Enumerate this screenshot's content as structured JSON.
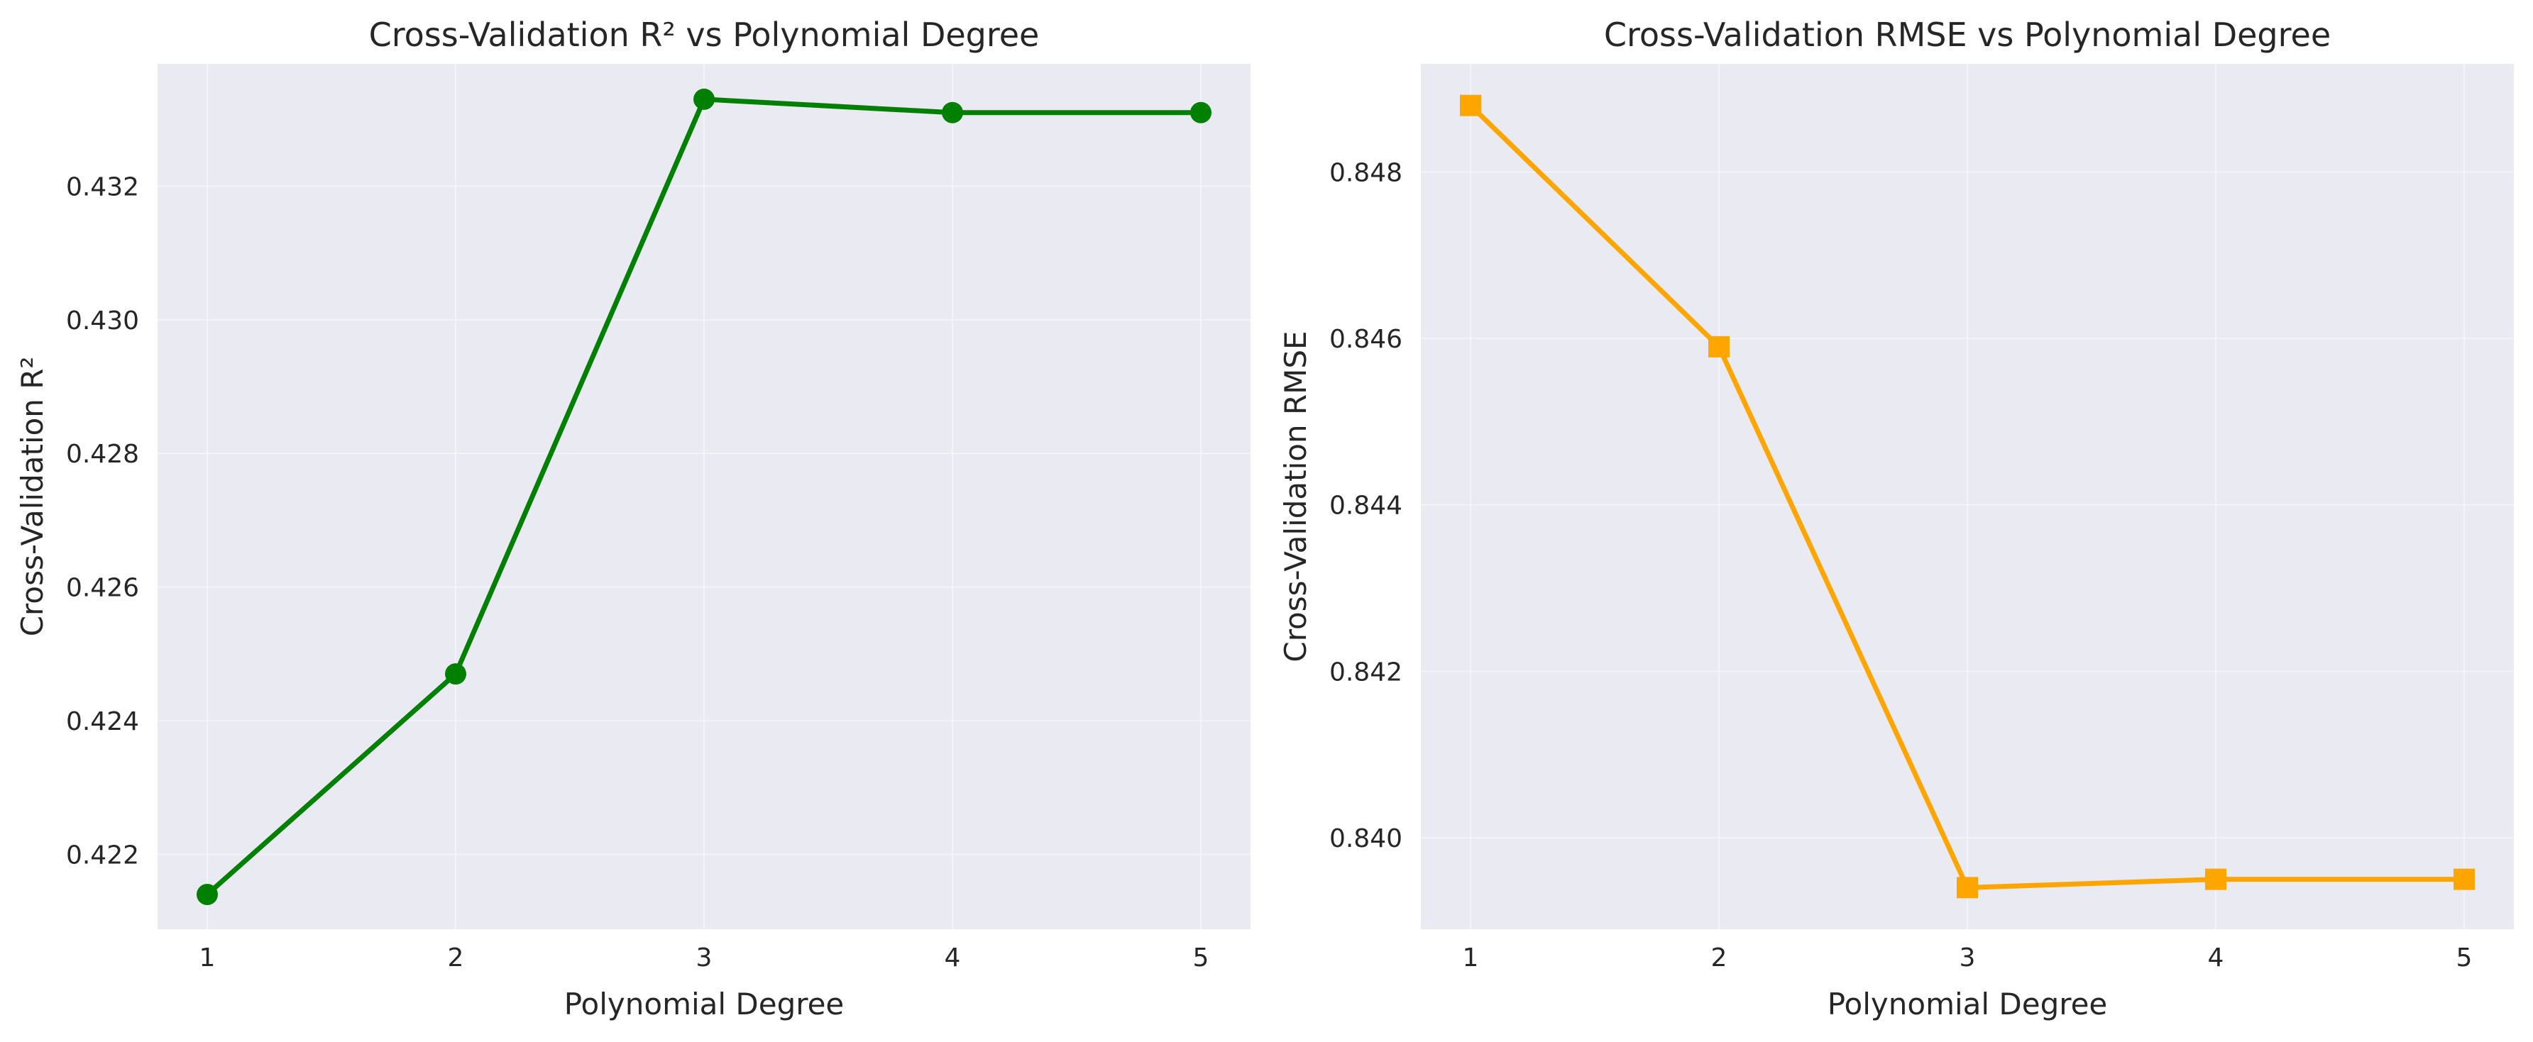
{
  "chart_data": [
    {
      "type": "line",
      "title": "Cross-Validation R² vs Polynomial Degree",
      "xlabel": "Polynomial Degree",
      "ylabel": "Cross-Validation R²",
      "x": [
        1,
        2,
        3,
        4,
        5
      ],
      "xticks": [
        "1",
        "2",
        "3",
        "4",
        "5"
      ],
      "xlim": [
        0.8,
        5.2
      ],
      "ylim": [
        0.42088,
        0.43383
      ],
      "yticks": [
        0.422,
        0.424,
        0.426,
        0.428,
        0.43,
        0.432
      ],
      "ytick_labels": [
        "0.422",
        "0.424",
        "0.426",
        "0.428",
        "0.430",
        "0.432"
      ],
      "series": [
        {
          "values": [
            0.4214,
            0.4247,
            0.4333,
            0.4331,
            0.4331
          ],
          "color": "#008000",
          "marker": "circle"
        }
      ],
      "grid": true,
      "legend": "none"
    },
    {
      "type": "line",
      "title": "Cross-Validation RMSE vs Polynomial Degree",
      "xlabel": "Polynomial Degree",
      "ylabel": "Cross-Validation RMSE",
      "x": [
        1,
        2,
        3,
        4,
        5
      ],
      "xticks": [
        "1",
        "2",
        "3",
        "4",
        "5"
      ],
      "xlim": [
        0.8,
        5.2
      ],
      "ylim": [
        0.8389,
        0.8493
      ],
      "yticks": [
        0.84,
        0.842,
        0.844,
        0.846,
        0.848
      ],
      "ytick_labels": [
        "0.840",
        "0.842",
        "0.844",
        "0.846",
        "0.848"
      ],
      "series": [
        {
          "values": [
            0.8488,
            0.8459,
            0.8394,
            0.8395,
            0.8395
          ],
          "color": "#ffa500",
          "marker": "square"
        }
      ],
      "grid": true,
      "legend": "none"
    }
  ]
}
